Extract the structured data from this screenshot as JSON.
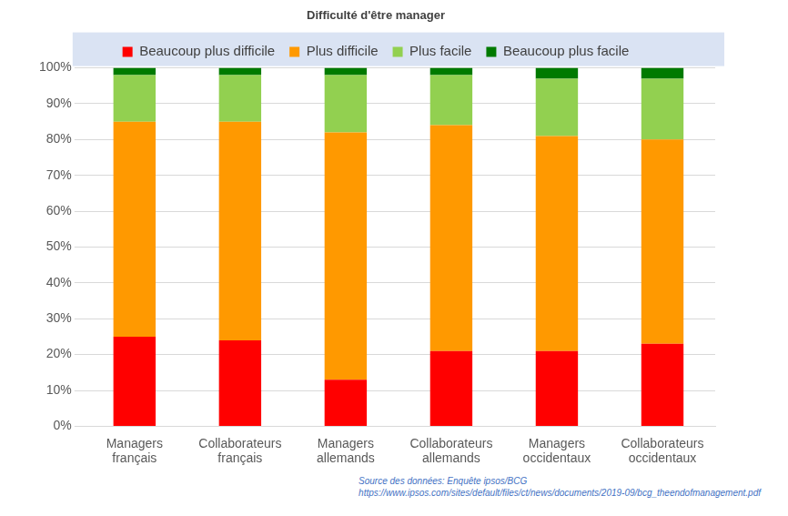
{
  "chart_data": {
    "type": "bar",
    "title": "Difficulté d'être manager",
    "categories": [
      "Managers français",
      "Collaborateurs français",
      "Managers allemands",
      "Collaborateurs allemands",
      "Managers occidentaux",
      "Collaborateurs occidentaux"
    ],
    "series": [
      {
        "name": "Beaucoup plus difficile",
        "color": "#ff0000",
        "values": [
          25,
          24,
          13,
          21,
          21,
          23
        ]
      },
      {
        "name": "Plus difficile",
        "color": "#ff9900",
        "values": [
          60,
          61,
          69,
          63,
          60,
          57
        ]
      },
      {
        "name": "Plus facile",
        "color": "#92d050",
        "values": [
          13,
          13,
          16,
          14,
          16,
          17
        ]
      },
      {
        "name": "Beaucoup plus facile",
        "color": "#007a00",
        "values": [
          2,
          2,
          2,
          2,
          3,
          3
        ]
      }
    ],
    "ylim": [
      0,
      100
    ],
    "yticks": [
      {
        "value": 0,
        "label": "0%"
      },
      {
        "value": 10,
        "label": "10%"
      },
      {
        "value": 20,
        "label": "20%"
      },
      {
        "value": 30,
        "label": "30%"
      },
      {
        "value": 40,
        "label": "40%"
      },
      {
        "value": 50,
        "label": "50%"
      },
      {
        "value": 60,
        "label": "60%"
      },
      {
        "value": 70,
        "label": "70%"
      },
      {
        "value": 80,
        "label": "80%"
      },
      {
        "value": 90,
        "label": "90%"
      },
      {
        "value": 100,
        "label": "100%"
      }
    ],
    "stacked": true,
    "grid": true,
    "legend": "top",
    "annotations": [
      "Source des données: Enquête ipsos/BCG",
      "https://www.ipsos.com/sites/default/files/ct/news/documents/2019-09/bcg_theendofmanagement.pdf"
    ]
  }
}
